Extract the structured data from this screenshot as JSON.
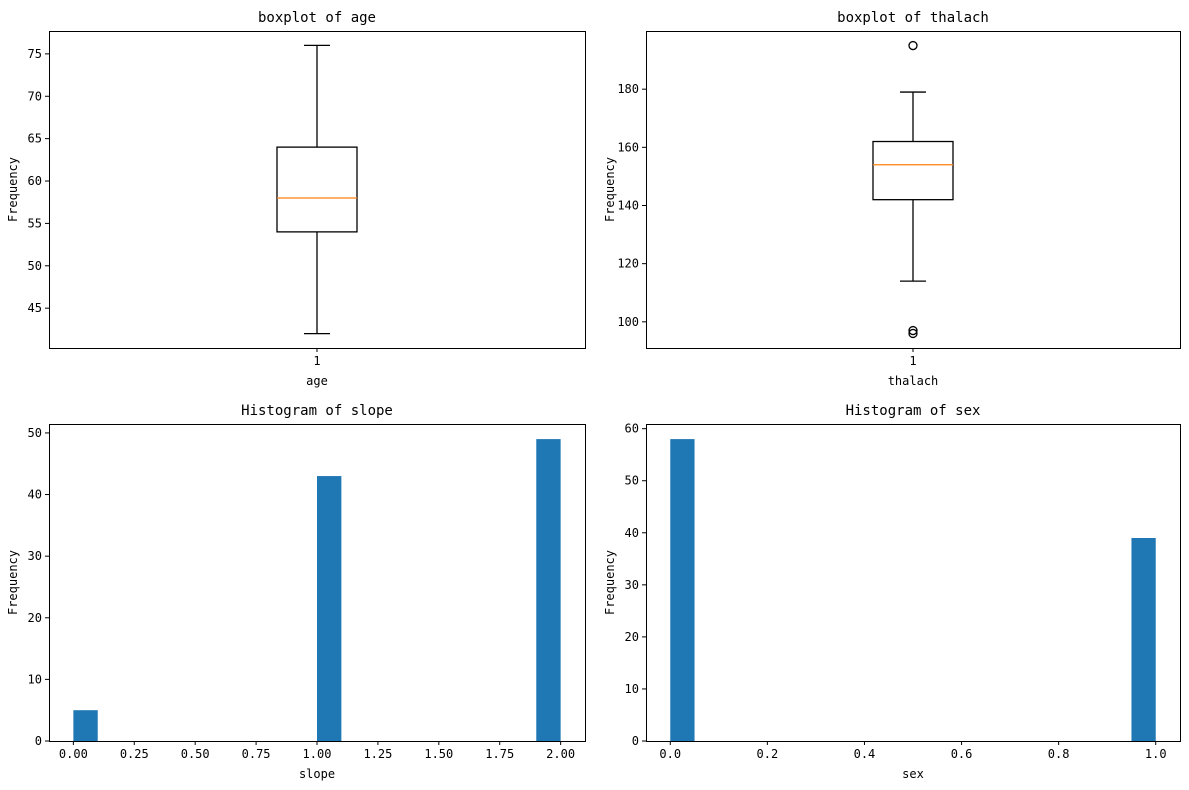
{
  "chart_data": [
    {
      "type": "box",
      "title": "boxplot of age",
      "xlabel": "age",
      "ylabel": "Frequency",
      "categories": [
        "1"
      ],
      "ylim": [
        40.3,
        77.7
      ],
      "yticks": [
        "45",
        "50",
        "55",
        "60",
        "65",
        "70",
        "75"
      ],
      "box": {
        "whislo": 42,
        "q1": 54,
        "med": 58,
        "q3": 64,
        "whishi": 76,
        "fliers": []
      },
      "colors": {
        "box": "#000000",
        "median": "#ff7f0e"
      }
    },
    {
      "type": "box",
      "title": "boxplot of thalach",
      "xlabel": "thalach",
      "ylabel": "Frequency",
      "categories": [
        "1"
      ],
      "ylim": [
        91.0,
        200.0
      ],
      "yticks": [
        "100",
        "120",
        "140",
        "160",
        "180"
      ],
      "box": {
        "whislo": 114,
        "q1": 142,
        "med": 154,
        "q3": 162,
        "whishi": 179,
        "fliers": [
          195,
          97,
          96
        ]
      },
      "colors": {
        "box": "#000000",
        "median": "#ff7f0e"
      }
    },
    {
      "type": "bar",
      "title": "Histogram of slope",
      "xlabel": "slope",
      "ylabel": "Frequency",
      "xlim": [
        -0.1,
        2.1
      ],
      "ylim": [
        0,
        51.45
      ],
      "xticks": [
        "0.00",
        "0.25",
        "0.50",
        "0.75",
        "1.00",
        "1.25",
        "1.50",
        "1.75",
        "2.00"
      ],
      "yticks": [
        "0",
        "10",
        "20",
        "30",
        "40",
        "50"
      ],
      "bins": [
        {
          "x0": 0.0,
          "x1": 0.1,
          "value": 5
        },
        {
          "x0": 1.0,
          "x1": 1.1,
          "value": 43
        },
        {
          "x0": 1.9,
          "x1": 2.0,
          "value": 49
        }
      ],
      "colors": {
        "bar": "#1f77b4"
      }
    },
    {
      "type": "bar",
      "title": "Histogram of sex",
      "xlabel": "sex",
      "ylabel": "Frequency",
      "xlim": [
        -0.05,
        1.05
      ],
      "ylim": [
        0,
        60.9
      ],
      "xticks": [
        "0.0",
        "0.2",
        "0.4",
        "0.6",
        "0.8",
        "1.0"
      ],
      "yticks": [
        "0",
        "10",
        "20",
        "30",
        "40",
        "50",
        "60"
      ],
      "bins": [
        {
          "x0": 0.0,
          "x1": 0.05,
          "value": 58
        },
        {
          "x0": 0.95,
          "x1": 1.0,
          "value": 39
        }
      ],
      "colors": {
        "bar": "#1f77b4"
      }
    }
  ]
}
